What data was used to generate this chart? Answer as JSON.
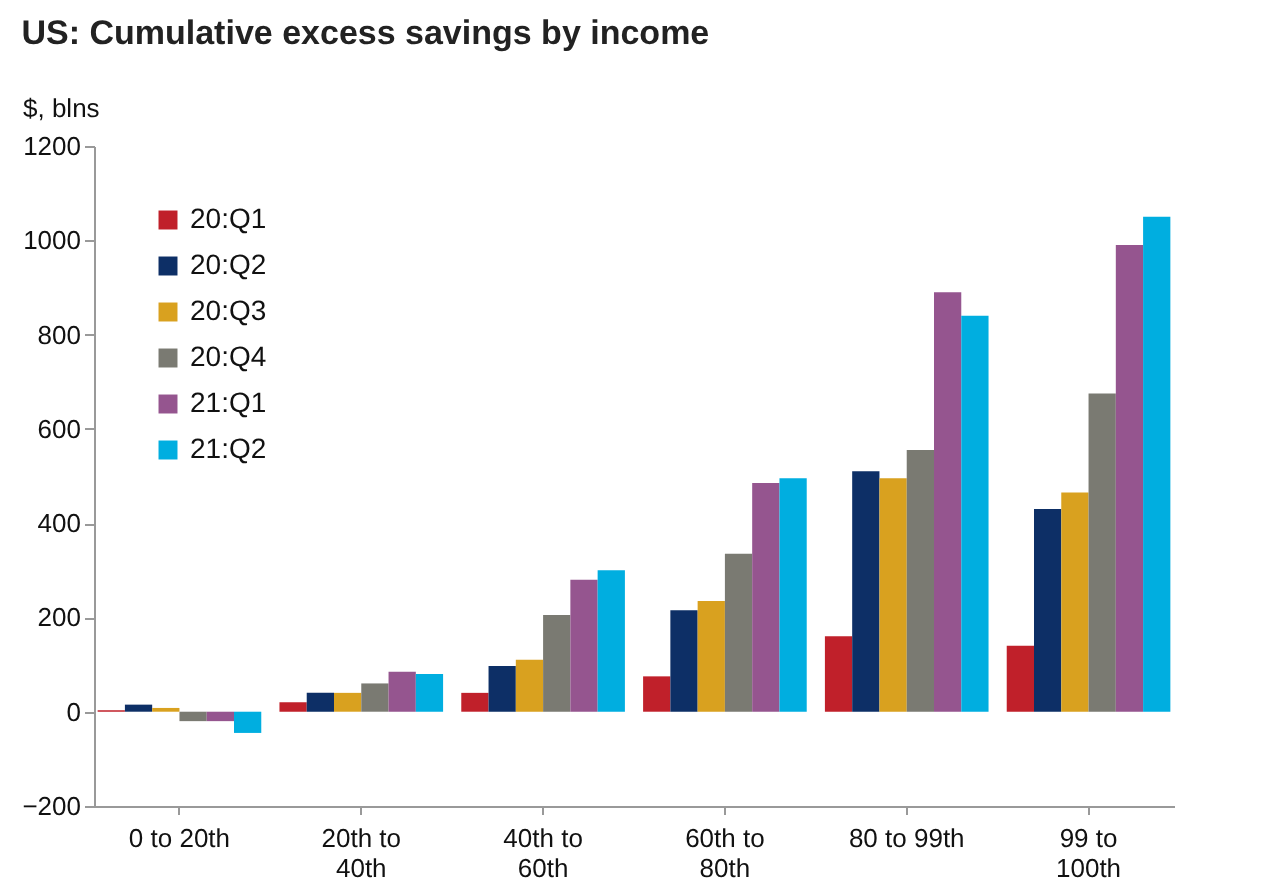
{
  "chart_data": {
    "type": "bar",
    "title": "US: Cumulative excess savings by income",
    "ylabel": "$, blns",
    "categories": [
      "0 to 20th",
      "20th to 40th",
      "40th to 60th",
      "60th to 80th",
      "80 to 99th",
      "99 to 100th"
    ],
    "series": [
      {
        "name": "20:Q1",
        "color": "#c0202a",
        "values": [
          3,
          20,
          40,
          75,
          160,
          140
        ]
      },
      {
        "name": "20:Q2",
        "color": "#0d2f66",
        "values": [
          15,
          40,
          97,
          215,
          510,
          430
        ]
      },
      {
        "name": "20:Q3",
        "color": "#d9a11f",
        "values": [
          8,
          40,
          110,
          235,
          495,
          465
        ]
      },
      {
        "name": "20:Q4",
        "color": "#7a7a72",
        "values": [
          -20,
          60,
          205,
          335,
          555,
          675
        ]
      },
      {
        "name": "21:Q1",
        "color": "#95558f",
        "values": [
          -20,
          85,
          280,
          485,
          890,
          990
        ]
      },
      {
        "name": "21:Q2",
        "color": "#00aee0",
        "values": [
          -45,
          80,
          300,
          495,
          840,
          1050
        ]
      }
    ],
    "ylim": [
      -200,
      1200
    ],
    "yticks": [
      -200,
      0,
      200,
      400,
      600,
      800,
      1000,
      1200
    ],
    "grid": false,
    "legend": "top left"
  }
}
